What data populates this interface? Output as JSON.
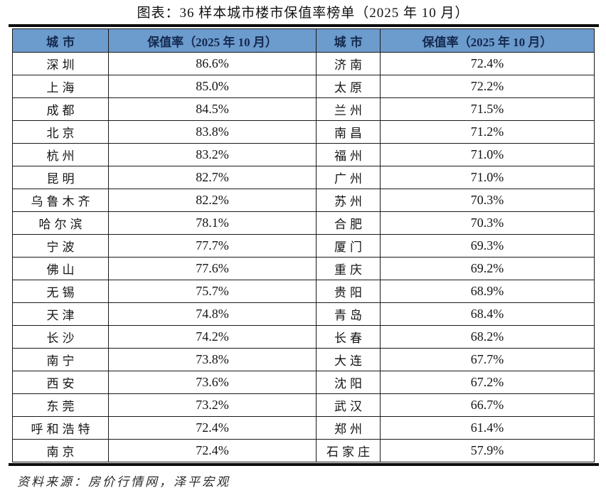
{
  "page": {
    "title": "图表：36 样本城市楼市保值率榜单（2025 年 10 月）",
    "source": "资料来源：房价行情网，泽平宏观"
  },
  "colors": {
    "header_bg": "#6c9bcd",
    "header_text": "#14294e",
    "rule": "#0d0d0d"
  },
  "chart_data": {
    "type": "table",
    "title": "图表：36 样本城市楼市保值率榜单（2025 年 10 月）",
    "source": "资料来源：房价行情网，泽平宏观",
    "columns": [
      "城市",
      "保值率（2025 年 10 月）",
      "城市",
      "保值率（2025 年 10 月）"
    ],
    "rows": [
      [
        "深圳",
        "86.6%",
        "济南",
        "72.4%"
      ],
      [
        "上海",
        "85.0%",
        "太原",
        "72.2%"
      ],
      [
        "成都",
        "84.5%",
        "兰州",
        "71.5%"
      ],
      [
        "北京",
        "83.8%",
        "南昌",
        "71.2%"
      ],
      [
        "杭州",
        "83.2%",
        "福州",
        "71.0%"
      ],
      [
        "昆明",
        "82.7%",
        "广州",
        "71.0%"
      ],
      [
        "乌鲁木齐",
        "82.2%",
        "苏州",
        "70.3%"
      ],
      [
        "哈尔滨",
        "78.1%",
        "合肥",
        "70.3%"
      ],
      [
        "宁波",
        "77.7%",
        "厦门",
        "69.3%"
      ],
      [
        "佛山",
        "77.6%",
        "重庆",
        "69.2%"
      ],
      [
        "无锡",
        "75.7%",
        "贵阳",
        "68.9%"
      ],
      [
        "天津",
        "74.8%",
        "青岛",
        "68.4%"
      ],
      [
        "长沙",
        "74.2%",
        "长春",
        "68.2%"
      ],
      [
        "南宁",
        "73.8%",
        "大连",
        "67.7%"
      ],
      [
        "西安",
        "73.6%",
        "沈阳",
        "67.2%"
      ],
      [
        "东莞",
        "73.2%",
        "武汉",
        "66.7%"
      ],
      [
        "呼和浩特",
        "72.4%",
        "郑州",
        "61.4%"
      ],
      [
        "南京",
        "72.4%",
        "石家庄",
        "57.9%"
      ]
    ]
  }
}
